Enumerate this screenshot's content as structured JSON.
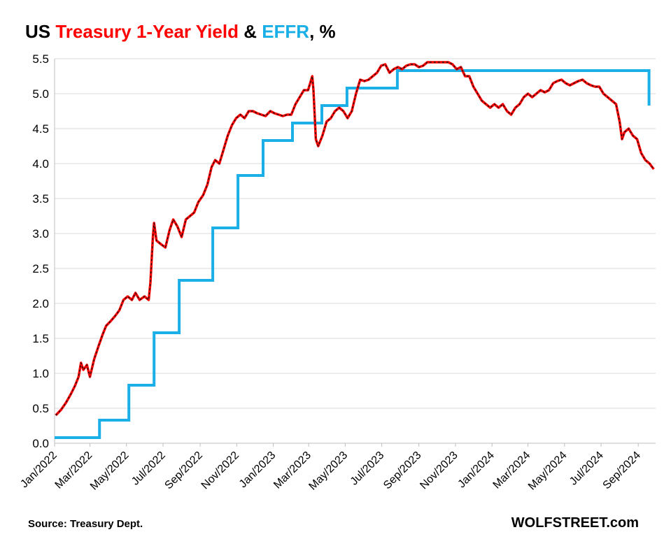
{
  "title": {
    "part1": "US ",
    "part2": "Treasury 1-Year Yield",
    "part3": " & ",
    "part4": "EFFR",
    "part5": ", %"
  },
  "colors": {
    "treasury": "#ff0000",
    "treasury_dash": "#1a1a1a",
    "effr": "#1aafe6",
    "grid": "#d9d9d9",
    "text": "#000000"
  },
  "source": "Source: Treasury Dept.",
  "site": "WOLFSTREET.com",
  "chart_data": {
    "type": "line",
    "ylim": [
      0,
      5.5
    ],
    "xlim": [
      "2022-01-01",
      "2024-09-30"
    ],
    "y_ticks": [
      "0.0",
      "0.5",
      "1.0",
      "1.5",
      "2.0",
      "2.5",
      "3.0",
      "3.5",
      "4.0",
      "4.5",
      "5.0",
      "5.5"
    ],
    "x_ticks": [
      "Jan/2022",
      "Mar/2022",
      "May/2022",
      "Jul/2022",
      "Sep/2022",
      "Nov/2022",
      "Jan/2023",
      "Mar/2023",
      "May/2023",
      "Jul/2023",
      "Sep/2023",
      "Nov/2023",
      "Jan/2024",
      "Mar/2024",
      "May/2024",
      "Jul/2024",
      "Sep/2024"
    ],
    "x_tick_dates": [
      "2022-01-01",
      "2022-03-01",
      "2022-05-01",
      "2022-07-01",
      "2022-09-01",
      "2022-11-01",
      "2023-01-01",
      "2023-03-01",
      "2023-05-01",
      "2023-07-01",
      "2023-09-01",
      "2023-11-01",
      "2024-01-01",
      "2024-03-01",
      "2024-05-01",
      "2024-07-01",
      "2024-09-01"
    ],
    "grid": true,
    "series": [
      {
        "name": "Treasury 1-Year Yield",
        "points": [
          [
            "2022-01-03",
            0.4
          ],
          [
            "2022-01-12",
            0.48
          ],
          [
            "2022-01-20",
            0.58
          ],
          [
            "2022-01-28",
            0.7
          ],
          [
            "2022-02-04",
            0.82
          ],
          [
            "2022-02-10",
            0.95
          ],
          [
            "2022-02-14",
            1.15
          ],
          [
            "2022-02-18",
            1.05
          ],
          [
            "2022-02-24",
            1.12
          ],
          [
            "2022-03-01",
            0.95
          ],
          [
            "2022-03-08",
            1.2
          ],
          [
            "2022-03-15",
            1.38
          ],
          [
            "2022-03-22",
            1.55
          ],
          [
            "2022-03-28",
            1.68
          ],
          [
            "2022-04-05",
            1.75
          ],
          [
            "2022-04-12",
            1.82
          ],
          [
            "2022-04-19",
            1.9
          ],
          [
            "2022-04-26",
            2.05
          ],
          [
            "2022-05-03",
            2.1
          ],
          [
            "2022-05-10",
            2.05
          ],
          [
            "2022-05-16",
            2.15
          ],
          [
            "2022-05-23",
            2.05
          ],
          [
            "2022-05-31",
            2.1
          ],
          [
            "2022-06-07",
            2.05
          ],
          [
            "2022-06-10",
            2.3
          ],
          [
            "2022-06-14",
            2.95
          ],
          [
            "2022-06-16",
            3.15
          ],
          [
            "2022-06-20",
            2.9
          ],
          [
            "2022-06-27",
            2.85
          ],
          [
            "2022-07-05",
            2.8
          ],
          [
            "2022-07-12",
            3.05
          ],
          [
            "2022-07-18",
            3.2
          ],
          [
            "2022-07-25",
            3.1
          ],
          [
            "2022-08-01",
            2.95
          ],
          [
            "2022-08-08",
            3.2
          ],
          [
            "2022-08-15",
            3.25
          ],
          [
            "2022-08-22",
            3.3
          ],
          [
            "2022-08-29",
            3.45
          ],
          [
            "2022-09-06",
            3.55
          ],
          [
            "2022-09-13",
            3.7
          ],
          [
            "2022-09-20",
            3.95
          ],
          [
            "2022-09-26",
            4.05
          ],
          [
            "2022-10-03",
            4.0
          ],
          [
            "2022-10-10",
            4.2
          ],
          [
            "2022-10-17",
            4.4
          ],
          [
            "2022-10-24",
            4.55
          ],
          [
            "2022-10-31",
            4.65
          ],
          [
            "2022-11-07",
            4.7
          ],
          [
            "2022-11-14",
            4.65
          ],
          [
            "2022-11-21",
            4.75
          ],
          [
            "2022-11-28",
            4.75
          ],
          [
            "2022-12-05",
            4.72
          ],
          [
            "2022-12-12",
            4.7
          ],
          [
            "2022-12-19",
            4.68
          ],
          [
            "2022-12-27",
            4.75
          ],
          [
            "2023-01-03",
            4.72
          ],
          [
            "2023-01-10",
            4.7
          ],
          [
            "2023-01-17",
            4.68
          ],
          [
            "2023-01-24",
            4.7
          ],
          [
            "2023-01-31",
            4.7
          ],
          [
            "2023-02-07",
            4.85
          ],
          [
            "2023-02-14",
            4.95
          ],
          [
            "2023-02-21",
            5.05
          ],
          [
            "2023-02-28",
            5.05
          ],
          [
            "2023-03-07",
            5.25
          ],
          [
            "2023-03-09",
            5.05
          ],
          [
            "2023-03-13",
            4.35
          ],
          [
            "2023-03-17",
            4.25
          ],
          [
            "2023-03-24",
            4.4
          ],
          [
            "2023-03-31",
            4.6
          ],
          [
            "2023-04-07",
            4.65
          ],
          [
            "2023-04-14",
            4.75
          ],
          [
            "2023-04-21",
            4.8
          ],
          [
            "2023-04-28",
            4.75
          ],
          [
            "2023-05-05",
            4.65
          ],
          [
            "2023-05-12",
            4.75
          ],
          [
            "2023-05-19",
            5.0
          ],
          [
            "2023-05-26",
            5.2
          ],
          [
            "2023-06-02",
            5.18
          ],
          [
            "2023-06-09",
            5.2
          ],
          [
            "2023-06-16",
            5.25
          ],
          [
            "2023-06-23",
            5.3
          ],
          [
            "2023-06-30",
            5.4
          ],
          [
            "2023-07-07",
            5.42
          ],
          [
            "2023-07-14",
            5.3
          ],
          [
            "2023-07-21",
            5.35
          ],
          [
            "2023-07-28",
            5.38
          ],
          [
            "2023-08-04",
            5.35
          ],
          [
            "2023-08-11",
            5.4
          ],
          [
            "2023-08-18",
            5.42
          ],
          [
            "2023-08-25",
            5.42
          ],
          [
            "2023-09-01",
            5.38
          ],
          [
            "2023-09-08",
            5.4
          ],
          [
            "2023-09-15",
            5.45
          ],
          [
            "2023-09-22",
            5.45
          ],
          [
            "2023-09-29",
            5.45
          ],
          [
            "2023-10-06",
            5.45
          ],
          [
            "2023-10-13",
            5.45
          ],
          [
            "2023-10-20",
            5.45
          ],
          [
            "2023-10-27",
            5.42
          ],
          [
            "2023-11-03",
            5.35
          ],
          [
            "2023-11-10",
            5.38
          ],
          [
            "2023-11-17",
            5.25
          ],
          [
            "2023-11-24",
            5.25
          ],
          [
            "2023-12-01",
            5.1
          ],
          [
            "2023-12-08",
            5.0
          ],
          [
            "2023-12-15",
            4.9
          ],
          [
            "2023-12-22",
            4.85
          ],
          [
            "2023-12-29",
            4.8
          ],
          [
            "2024-01-05",
            4.85
          ],
          [
            "2024-01-12",
            4.8
          ],
          [
            "2024-01-19",
            4.85
          ],
          [
            "2024-01-26",
            4.75
          ],
          [
            "2024-02-02",
            4.7
          ],
          [
            "2024-02-09",
            4.8
          ],
          [
            "2024-02-16",
            4.85
          ],
          [
            "2024-02-23",
            4.95
          ],
          [
            "2024-03-01",
            5.0
          ],
          [
            "2024-03-08",
            4.95
          ],
          [
            "2024-03-15",
            5.0
          ],
          [
            "2024-03-22",
            5.05
          ],
          [
            "2024-03-29",
            5.02
          ],
          [
            "2024-04-05",
            5.05
          ],
          [
            "2024-04-12",
            5.15
          ],
          [
            "2024-04-19",
            5.18
          ],
          [
            "2024-04-26",
            5.2
          ],
          [
            "2024-05-03",
            5.15
          ],
          [
            "2024-05-10",
            5.12
          ],
          [
            "2024-05-17",
            5.15
          ],
          [
            "2024-05-24",
            5.18
          ],
          [
            "2024-05-31",
            5.2
          ],
          [
            "2024-06-07",
            5.15
          ],
          [
            "2024-06-14",
            5.12
          ],
          [
            "2024-06-21",
            5.1
          ],
          [
            "2024-06-28",
            5.1
          ],
          [
            "2024-07-05",
            5.0
          ],
          [
            "2024-07-12",
            4.95
          ],
          [
            "2024-07-19",
            4.9
          ],
          [
            "2024-07-26",
            4.85
          ],
          [
            "2024-08-01",
            4.6
          ],
          [
            "2024-08-05",
            4.35
          ],
          [
            "2024-08-09",
            4.45
          ],
          [
            "2024-08-16",
            4.5
          ],
          [
            "2024-08-23",
            4.4
          ],
          [
            "2024-08-30",
            4.35
          ],
          [
            "2024-09-06",
            4.15
          ],
          [
            "2024-09-13",
            4.05
          ],
          [
            "2024-09-20",
            4.0
          ],
          [
            "2024-09-27",
            3.92
          ]
        ]
      },
      {
        "name": "EFFR",
        "points": [
          [
            "2022-01-01",
            0.08
          ],
          [
            "2022-03-17",
            0.08
          ],
          [
            "2022-03-17",
            0.33
          ],
          [
            "2022-05-05",
            0.33
          ],
          [
            "2022-05-05",
            0.83
          ],
          [
            "2022-06-16",
            0.83
          ],
          [
            "2022-06-16",
            1.58
          ],
          [
            "2022-07-28",
            1.58
          ],
          [
            "2022-07-28",
            2.33
          ],
          [
            "2022-09-22",
            2.33
          ],
          [
            "2022-09-22",
            3.08
          ],
          [
            "2022-11-03",
            3.08
          ],
          [
            "2022-11-03",
            3.83
          ],
          [
            "2022-12-15",
            3.83
          ],
          [
            "2022-12-15",
            4.33
          ],
          [
            "2023-02-02",
            4.33
          ],
          [
            "2023-02-02",
            4.58
          ],
          [
            "2023-03-23",
            4.58
          ],
          [
            "2023-03-23",
            4.83
          ],
          [
            "2023-05-04",
            4.83
          ],
          [
            "2023-05-04",
            5.08
          ],
          [
            "2023-07-27",
            5.08
          ],
          [
            "2023-07-27",
            5.33
          ],
          [
            "2024-09-19",
            5.33
          ],
          [
            "2024-09-19",
            4.83
          ]
        ]
      }
    ]
  }
}
